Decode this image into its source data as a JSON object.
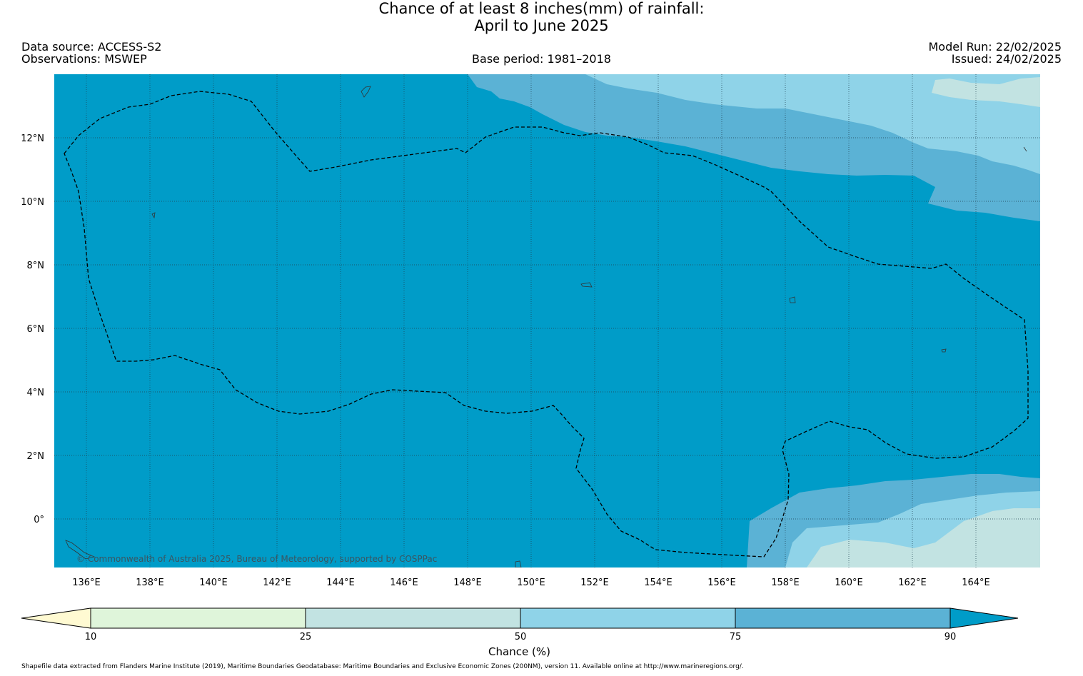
{
  "title_line1": "Chance of at least 8 inches(mm) of rainfall:",
  "title_line2": "April to June 2025",
  "data_source": "Data source: ACCESS-S2",
  "observations": "Observations: MSWEP",
  "base_period": "Base period: 1981–2018",
  "model_run": "Model Run: 22/02/2025",
  "issued": "Issued: 24/02/2025",
  "copyright": "© Commonwealth of Australia 2025, Bureau of Meteorology, supported by COSPPac",
  "footnote": "Shapefile data extracted from Flanders Marine Institute (2019), Maritime Boundaries Geodatabase: Maritime Boundaries and Exclusive Economic Zones (200NM), version 11. Available online at http://www.marineregions.org/.",
  "map": {
    "lon_labels": [
      "136°E",
      "138°E",
      "140°E",
      "142°E",
      "144°E",
      "146°E",
      "148°E",
      "150°E",
      "152°E",
      "154°E",
      "156°E",
      "158°E",
      "160°E",
      "162°E",
      "164°E"
    ],
    "lat_labels": [
      "12°N",
      "10°N",
      "8°N",
      "6°N",
      "4°N",
      "2°N",
      "0°"
    ],
    "lon_range": [
      135,
      166
    ],
    "lat_range": [
      -1.5,
      14
    ],
    "dominant_category": "90+",
    "colors": {
      "below10": "#fffad2",
      "c10_25": "#dff5da",
      "c25_50": "#c2e3e2",
      "c50_75": "#8fd3e8",
      "c75_90": "#5bb2d5",
      "above90": "#009cc8"
    }
  },
  "colorbar": {
    "title": "Chance (%)",
    "ticks": [
      "10",
      "25",
      "50",
      "75",
      "90"
    ]
  }
}
